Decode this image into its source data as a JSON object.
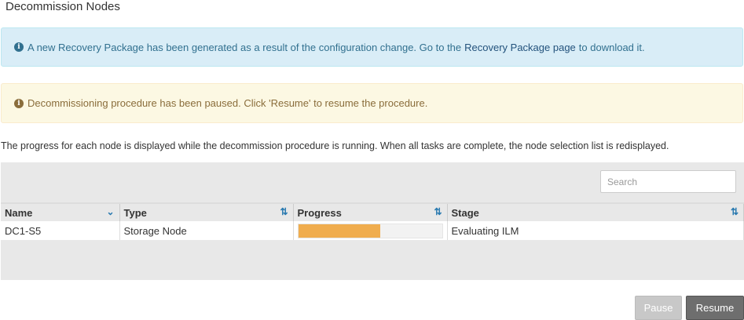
{
  "page": {
    "title": "Decommission Nodes"
  },
  "alerts": {
    "info": {
      "text_before": "A new Recovery Package has been generated as a result of the configuration change. Go to the",
      "link": "Recovery Package page",
      "text_after": "to download it.",
      "color": "#d9edf7"
    },
    "warning": {
      "text": "Decommissioning procedure has been paused. Click 'Resume' to resume the procedure.",
      "color": "#fcf8e3"
    }
  },
  "description": "The progress for each node is displayed while the decommission procedure is running. When all tasks are complete, the node selection list is redisplayed.",
  "search": {
    "placeholder": "Search"
  },
  "table": {
    "columns": [
      "Name",
      "Type",
      "Progress",
      "Stage"
    ],
    "rows": [
      {
        "name": "DC1-S5",
        "type": "Storage Node",
        "progress_percent": 57,
        "stage": "Evaluating ILM"
      }
    ]
  },
  "buttons": {
    "pause": "Pause",
    "resume": "Resume"
  },
  "colors": {
    "progress": "#f0ad4e",
    "accent": "#2a7ab0"
  }
}
